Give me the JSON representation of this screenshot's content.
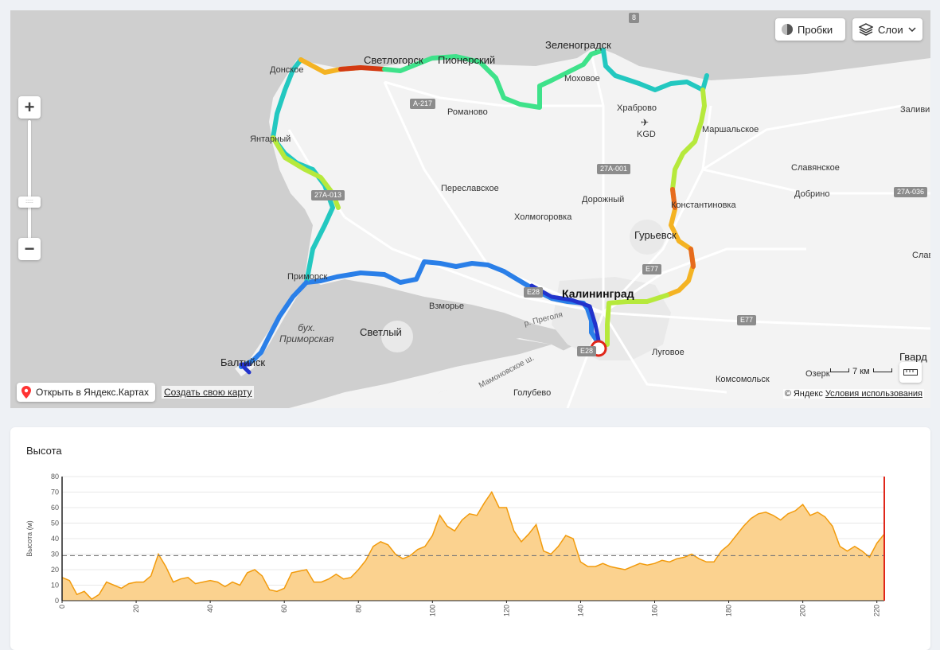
{
  "map": {
    "controls": {
      "traffic_label": "Пробки",
      "layers_label": "Слои",
      "zoom_in_label": "+",
      "zoom_out_label": "−",
      "zoom_handle_label": ":::::"
    },
    "open_in_yandex_label": "Открыть в Яндекс.Картах",
    "create_map_label": "Создать свою карту",
    "copyright_text": "© Яндекс",
    "terms_label": "Условия использования",
    "scale_label": "7 км",
    "labels": {
      "zelenogradsk": "Зеленоградск",
      "svetlogorsk": "Светлогорск",
      "pionersky": "Пионерский",
      "donskoe": "Донское",
      "yantarny": "Янтарный",
      "romanovo": "Романово",
      "mokhovoe": "Моховое",
      "khrabrovo": "Храброво",
      "kgd": "KGD",
      "marshalskoe": "Маршальское",
      "zalivino": "Заливи",
      "slavyanskoe": "Славянское",
      "dobrino": "Добрино",
      "pereslavskoe": "Переславское",
      "dorozhny": "Дорожный",
      "konstantinovka": "Константиновка",
      "kholmogorovka": "Холмогоровка",
      "guryevsk": "Гурьевск",
      "slav": "Слав",
      "primorsk": "Приморск",
      "kaliningrad": "Калининград",
      "vzmorye": "Взморье",
      "svetly": "Светлый",
      "bay_line1": "бух.",
      "bay_line2": "Приморская",
      "pregolya": "р. Преголя",
      "baltiysk": "Балтийск",
      "lugovoe": "Луговое",
      "gvard": "Гвард",
      "ozerki": "Озерк",
      "komsomolsk": "Комсомольск",
      "mamonovo_road": "Мамоновское ш.",
      "golubevo": "Голубево"
    },
    "road_shields": {
      "a217": "A-217",
      "r27a001": "27A-001",
      "r27a013": "27A-013",
      "r27a036": "27A-036",
      "e77a": "E77",
      "e77b": "E77",
      "e28": "E28",
      "e28b": "E28",
      "shield_top": "8"
    },
    "route_colors": [
      "#2233cc",
      "#2a7fe8",
      "#23c8c0",
      "#3ee28a",
      "#b6e93c",
      "#f4b323",
      "#e66b1d",
      "#d33a12"
    ]
  },
  "elevation": {
    "title": "Высота",
    "chart_data": {
      "type": "area",
      "ylabel": "Высота (м)",
      "xlabel": "",
      "ylim": [
        0,
        80
      ],
      "xlim": [
        0,
        222
      ],
      "y_ticks": [
        0,
        10,
        20,
        30,
        40,
        50,
        60,
        70,
        80
      ],
      "x_ticks": [
        0,
        20,
        40,
        60,
        80,
        100,
        120,
        140,
        160,
        180,
        200,
        220
      ],
      "average_line": 29,
      "fill_color": "#fbd28f",
      "line_color": "#f29b0c",
      "current_marker_color": "#e0271a",
      "x": [
        0,
        2,
        4,
        6,
        8,
        10,
        12,
        14,
        16,
        18,
        20,
        22,
        24,
        26,
        28,
        30,
        32,
        34,
        36,
        38,
        40,
        42,
        44,
        46,
        48,
        50,
        52,
        54,
        56,
        58,
        60,
        62,
        64,
        66,
        68,
        70,
        72,
        74,
        76,
        78,
        80,
        82,
        84,
        86,
        88,
        90,
        92,
        94,
        96,
        98,
        100,
        102,
        104,
        106,
        108,
        110,
        112,
        114,
        116,
        118,
        120,
        122,
        124,
        126,
        128,
        130,
        132,
        134,
        136,
        138,
        140,
        142,
        144,
        146,
        148,
        150,
        152,
        154,
        156,
        158,
        160,
        162,
        164,
        166,
        168,
        170,
        172,
        174,
        176,
        178,
        180,
        182,
        184,
        186,
        188,
        190,
        192,
        194,
        196,
        198,
        200,
        202,
        204,
        206,
        208,
        210,
        212,
        214,
        216,
        218,
        220,
        222
      ],
      "values": [
        15,
        13,
        4,
        6,
        1,
        4,
        12,
        10,
        8,
        11,
        12,
        12,
        16,
        30,
        22,
        12,
        14,
        15,
        11,
        12,
        13,
        12,
        9,
        12,
        10,
        18,
        20,
        16,
        7,
        6,
        8,
        18,
        19,
        20,
        12,
        12,
        14,
        17,
        14,
        15,
        20,
        26,
        35,
        38,
        36,
        30,
        27,
        29,
        33,
        35,
        42,
        55,
        48,
        45,
        52,
        56,
        55,
        63,
        70,
        60,
        60,
        45,
        38,
        43,
        49,
        32,
        30,
        35,
        42,
        40,
        25,
        22,
        22,
        24,
        22,
        21,
        20,
        22,
        24,
        23,
        24,
        26,
        25,
        27,
        28,
        30,
        27,
        25,
        25,
        32,
        36,
        42,
        48,
        53,
        56,
        57,
        55,
        52,
        56,
        58,
        62,
        55,
        57,
        54,
        48,
        35,
        32,
        35,
        32,
        28,
        37,
        43
      ]
    }
  }
}
